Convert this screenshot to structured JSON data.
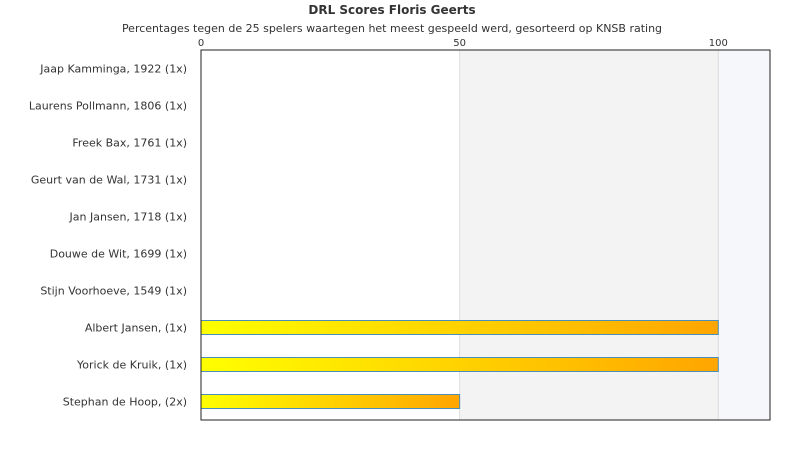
{
  "chart_data": {
    "type": "bar",
    "orientation": "horizontal",
    "title": "DRL Scores Floris Geerts",
    "subtitle": "Percentages tegen de 25 spelers waartegen het meest gespeeld werd, gesorteerd op KNSB rating",
    "categories": [
      "Jaap Kamminga, 1922 (1x)",
      "Laurens Pollmann, 1806 (1x)",
      "Freek Bax, 1761 (1x)",
      "Geurt van de Wal, 1731 (1x)",
      "Jan Jansen, 1718 (1x)",
      "Douwe de Wit, 1699 (1x)",
      "Stijn Voorhoeve, 1549 (1x)",
      "Albert Jansen,  (1x)",
      "Yorick de Kruik,  (1x)",
      "Stephan de Hoop,  (2x)"
    ],
    "values": [
      0,
      0,
      0,
      0,
      0,
      0,
      0,
      100,
      100,
      50
    ],
    "xlim": [
      0,
      110
    ],
    "xticks": [
      0,
      50,
      100
    ],
    "xtick_labels": [
      "0",
      "50",
      "100"
    ],
    "axis_position": "top",
    "grid": true,
    "colors": {
      "bar_start": "#ffff00",
      "bar_end": "#ffa500",
      "bar_border": "#4a8fb8",
      "band_alt": "#f3f3f3",
      "band_last": "#f5f7fb",
      "frame": "#222222"
    }
  }
}
